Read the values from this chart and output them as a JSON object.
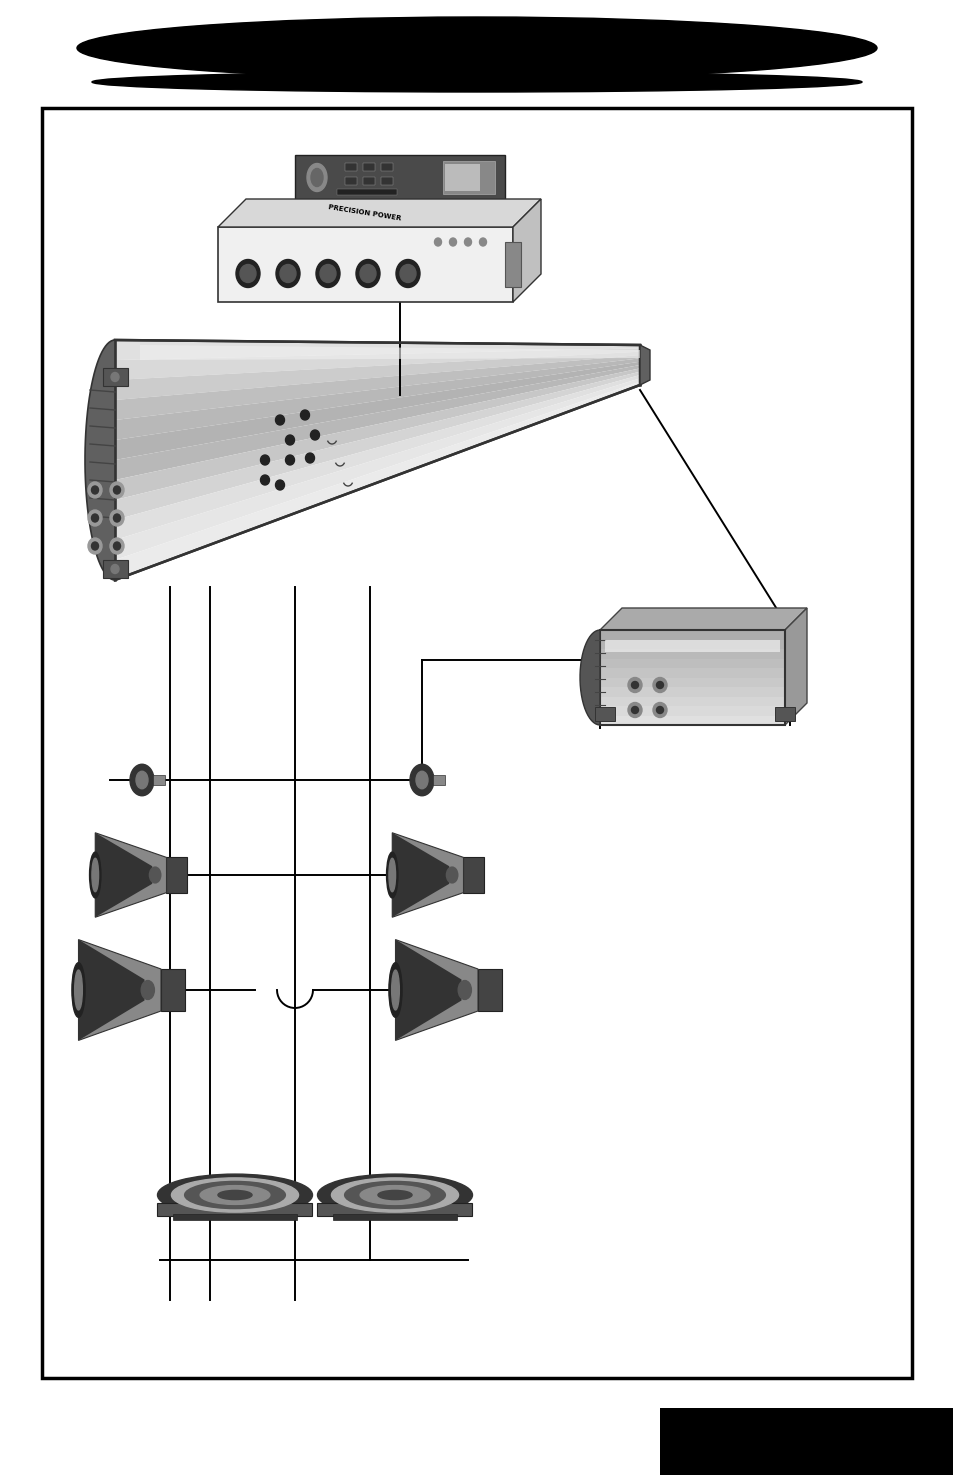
{
  "bg_color": "#ffffff",
  "page_width": 9.54,
  "page_height": 14.75,
  "wire_color": "#000000",
  "wire_lw": 1.4
}
